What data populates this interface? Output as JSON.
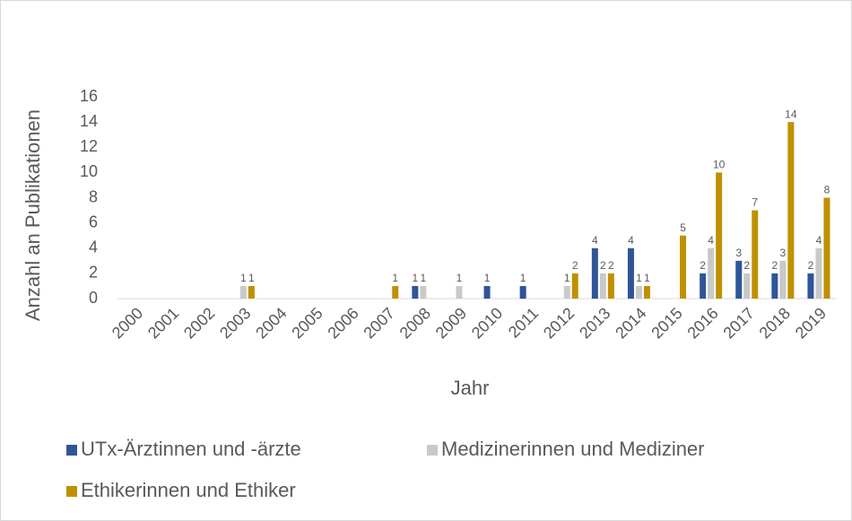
{
  "chart_data": {
    "type": "bar",
    "y_axis_label": "Anzahl an Publikationen",
    "x_axis_label": "Jahr",
    "categories": [
      "2000",
      "2001",
      "2002",
      "2003",
      "2004",
      "2005",
      "2006",
      "2007",
      "2008",
      "2009",
      "2010",
      "2011",
      "2012",
      "2013",
      "2014",
      "2015",
      "2016",
      "2017",
      "2018",
      "2019"
    ],
    "series": [
      {
        "name": "UTx-Ärztinnen und -ärzte",
        "color": "#2f5597",
        "values": [
          0,
          0,
          0,
          0,
          0,
          0,
          0,
          0,
          1,
          0,
          1,
          1,
          0,
          4,
          4,
          0,
          2,
          3,
          2,
          2
        ]
      },
      {
        "name": "Medizinerinnen und Mediziner",
        "color": "#c9c9c9",
        "values": [
          0,
          0,
          0,
          1,
          0,
          0,
          0,
          0,
          1,
          1,
          0,
          0,
          1,
          2,
          1,
          0,
          4,
          2,
          3,
          4
        ]
      },
      {
        "name": "Ethikerinnen und Ethiker",
        "color": "#bf9000",
        "values": [
          0,
          0,
          0,
          1,
          0,
          0,
          0,
          1,
          0,
          0,
          0,
          0,
          2,
          2,
          1,
          5,
          10,
          7,
          14,
          8
        ]
      }
    ],
    "ylim": [
      0,
      16
    ],
    "yticks": [
      0,
      2,
      4,
      6,
      8,
      10,
      12,
      14,
      16
    ],
    "grid": false
  }
}
